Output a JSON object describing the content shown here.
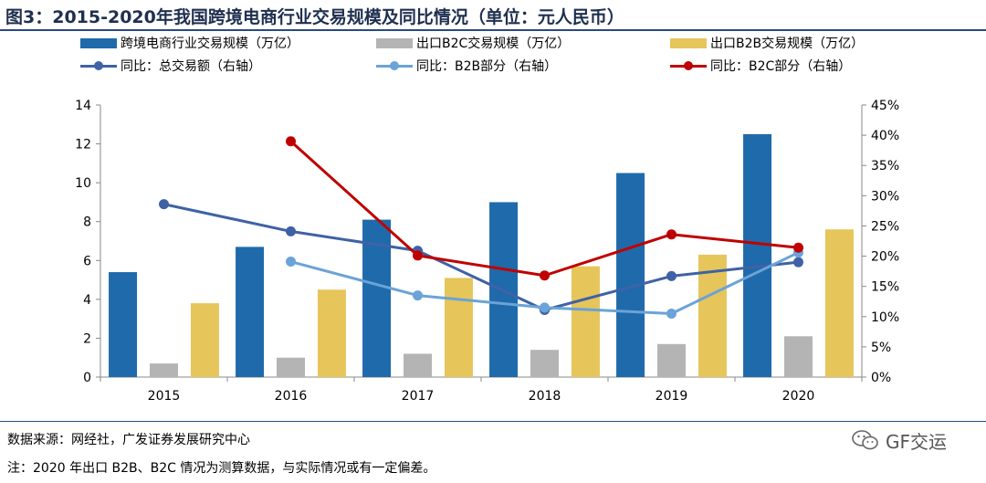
{
  "title": "图3：2015-2020年我国跨境电商行业交易规模及同比情况（单位：元人民币）",
  "legend": [
    {
      "label": "跨境电商行业交易规模（万亿）",
      "kind": "bar",
      "color": "#1f6aab"
    },
    {
      "label": "出口B2C交易规模（万亿）",
      "kind": "bar",
      "color": "#b4b4b4"
    },
    {
      "label": "出口B2B交易规模（万亿）",
      "kind": "bar",
      "color": "#e6c55a"
    },
    {
      "label": "同比：总交易额（右轴）",
      "kind": "line",
      "color": "#3f62a6"
    },
    {
      "label": "同比：B2B部分（右轴）",
      "kind": "line",
      "color": "#6aa3d8"
    },
    {
      "label": "同比：B2C部分（右轴）",
      "kind": "line",
      "color": "#c00000"
    }
  ],
  "chart_data": {
    "type": "bar",
    "categories": [
      "2015",
      "2016",
      "2017",
      "2018",
      "2019",
      "2020"
    ],
    "ylim_left": [
      0,
      14
    ],
    "ylim_right": [
      0,
      45
    ],
    "left_ticks": [
      "0",
      "2",
      "4",
      "6",
      "8",
      "10",
      "12",
      "14"
    ],
    "right_ticks": [
      "0%",
      "5%",
      "10%",
      "15%",
      "20%",
      "25%",
      "30%",
      "35%",
      "40%",
      "45%"
    ],
    "bar_series": [
      {
        "name": "跨境电商行业交易规模（万亿）",
        "color": "#1f6aab",
        "values": [
          5.4,
          6.7,
          8.1,
          9.0,
          10.5,
          12.5
        ]
      },
      {
        "name": "出口B2C交易规模（万亿）",
        "color": "#b4b4b4",
        "values": [
          0.7,
          1.0,
          1.2,
          1.4,
          1.7,
          2.1
        ]
      },
      {
        "name": "出口B2B交易规模（万亿）",
        "color": "#e6c55a",
        "values": [
          3.8,
          4.5,
          5.1,
          5.7,
          6.3,
          7.6
        ]
      }
    ],
    "line_series": [
      {
        "name": "同比：总交易额（右轴）",
        "color": "#3f62a6",
        "values": [
          28.6,
          24.1,
          20.9,
          11.1,
          16.7,
          19.0
        ]
      },
      {
        "name": "同比：B2B部分（右轴）",
        "color": "#6aa3d8",
        "values": [
          null,
          19.1,
          13.5,
          11.5,
          10.5,
          20.6
        ]
      },
      {
        "name": "同比：B2C部分（右轴）",
        "color": "#c00000",
        "values": [
          null,
          39.0,
          20.1,
          16.8,
          23.6,
          21.4
        ]
      }
    ],
    "grid": false,
    "legend_position": "top"
  },
  "footer": {
    "source": "数据来源：网经社，广发证券发展研究中心",
    "note": "注：2020 年出口 B2B、B2C 情况为测算数据，与实际情况或有一定偏差。",
    "watermark": "GF交运"
  }
}
